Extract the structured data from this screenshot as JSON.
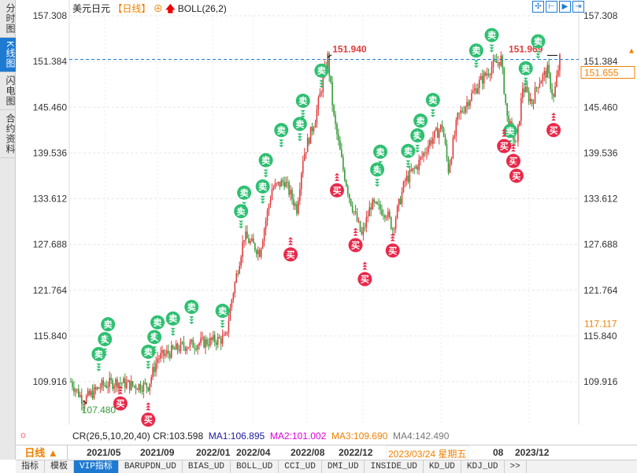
{
  "sidebar": {
    "tabs": [
      {
        "label": "分时图"
      },
      {
        "label": "K线图",
        "active": true
      },
      {
        "label": "闪电图"
      },
      {
        "label": "合约资料"
      }
    ]
  },
  "header": {
    "symbol": "美元日元",
    "timeframe": "【日线】",
    "timeframe_icon": "crosshair-circle-icon",
    "indicator_icon": "red-up-arrow-icon",
    "indicator": "BOLL(26,2)"
  },
  "toolbar": {
    "icons": [
      "crosshair-icon",
      "zoom-range-icon",
      "step-forward-icon",
      "jump-end-icon"
    ]
  },
  "colors": {
    "up": "#e03c3c",
    "down": "#3a9a3a",
    "sell": "#2fbf71",
    "buy": "#e8294a",
    "accent": "#1e7ad1",
    "highlight": "#f08000"
  },
  "chart_data": {
    "type": "candlestick",
    "y_ticks": [
      "157.308",
      "151.384",
      "145.460",
      "139.536",
      "133.612",
      "127.688",
      "121.764",
      "115.840",
      "109.916"
    ],
    "ylim": [
      104.0,
      158.5
    ],
    "x_ticks": [
      "2021/05",
      "2021/09",
      "2022/01",
      "2022/04",
      "2022/08",
      "2022/12",
      "2023/12"
    ],
    "x_tick_partial": "08",
    "close_path": [
      [
        0,
        109.92
      ],
      [
        4,
        107.48
      ],
      [
        10,
        109.41
      ],
      [
        15,
        109.92
      ],
      [
        20,
        109.41
      ],
      [
        25,
        109.41
      ],
      [
        28,
        112.97
      ],
      [
        36,
        114.5
      ],
      [
        43,
        115.01
      ],
      [
        50,
        115.52
      ],
      [
        52,
        120.62
      ],
      [
        56,
        128.77
      ],
      [
        61,
        126.73
      ],
      [
        65,
        134.88
      ],
      [
        69,
        135.91
      ],
      [
        73,
        132.34
      ],
      [
        75,
        138.96
      ],
      [
        79,
        144.06
      ],
      [
        83,
        151.94
      ],
      [
        85,
        144.06
      ],
      [
        88,
        137.43
      ],
      [
        90,
        133.87
      ],
      [
        94,
        128.77
      ],
      [
        97,
        132.85
      ],
      [
        102,
        131.83
      ],
      [
        104,
        129.79
      ],
      [
        108,
        135.91
      ],
      [
        112,
        137.94
      ],
      [
        116,
        141.0
      ],
      [
        120,
        143.04
      ],
      [
        122,
        137.43
      ],
      [
        125,
        144.06
      ],
      [
        128,
        146.1
      ],
      [
        132,
        148.65
      ],
      [
        136,
        150.68
      ],
      [
        139,
        151.7
      ],
      [
        141,
        144.06
      ],
      [
        144,
        140.49
      ],
      [
        146,
        148.14
      ],
      [
        149,
        146.1
      ],
      [
        151,
        148.65
      ],
      [
        154,
        150.17
      ],
      [
        156,
        146.61
      ],
      [
        158,
        151.655
      ]
    ],
    "signals": {
      "sell_label": "卖",
      "buy_label": "买",
      "sell": [
        [
          9,
          113.5
        ],
        [
          11,
          114.0
        ],
        [
          12,
          114.7
        ],
        [
          25,
          113.8
        ],
        [
          27,
          115.5
        ],
        [
          28,
          117.6
        ],
        [
          33,
          118.1
        ],
        [
          39,
          119.6
        ],
        [
          49,
          119.1
        ],
        [
          55,
          132.0
        ],
        [
          56,
          134.4
        ],
        [
          62,
          135.2
        ],
        [
          63,
          138.6
        ],
        [
          68,
          142.5
        ],
        [
          74,
          143.3
        ],
        [
          75,
          146.3
        ],
        [
          81,
          150.2
        ],
        [
          99,
          137.4
        ],
        [
          100,
          139.7
        ],
        [
          109,
          139.8
        ],
        [
          112,
          141.2
        ],
        [
          113,
          142.5
        ],
        [
          117,
          146.4
        ],
        [
          131,
          152.8
        ],
        [
          136,
          154.8
        ],
        [
          142,
          142.4
        ],
        [
          147,
          150.5
        ],
        [
          151,
          154.0
        ]
      ],
      "buy": [
        [
          16,
          107.1
        ],
        [
          25,
          105.0
        ],
        [
          71,
          126.4
        ],
        [
          86,
          134.7
        ],
        [
          92,
          127.6
        ],
        [
          95,
          123.2
        ],
        [
          104,
          126.9
        ],
        [
          140,
          144.1
        ],
        [
          143,
          138.5
        ],
        [
          144,
          137.4
        ],
        [
          156,
          142.5
        ]
      ]
    },
    "annotations": {
      "high": "151.940",
      "high_bar": 83,
      "recent_high": "151.969",
      "recent_high_bar": 157,
      "low": "107.480",
      "low_bar": 4
    },
    "current_price": "151.655",
    "cursor_price": "117.117",
    "grid": true
  },
  "indicator_line": {
    "name": "CR(26,5,10,20,40)",
    "cr": "CR:103.598",
    "ma1": "MA1:106.895",
    "ma2": "MA2:101.002",
    "ma3": "MA3:109.690",
    "ma4": "MA4:142.490"
  },
  "xaxis": {
    "period": "日线 ▲",
    "cursor_date": "2023/03/24 星期五"
  },
  "tabs": [
    "指标",
    "模板",
    "VIP指标",
    "BARUPDN_UD",
    "BIAS_UD",
    "BOLL_UD",
    "CCI_UD",
    "DMI_UD",
    "INSIDE_UD",
    "KD_UD",
    "KDJ_UD",
    ">>"
  ]
}
